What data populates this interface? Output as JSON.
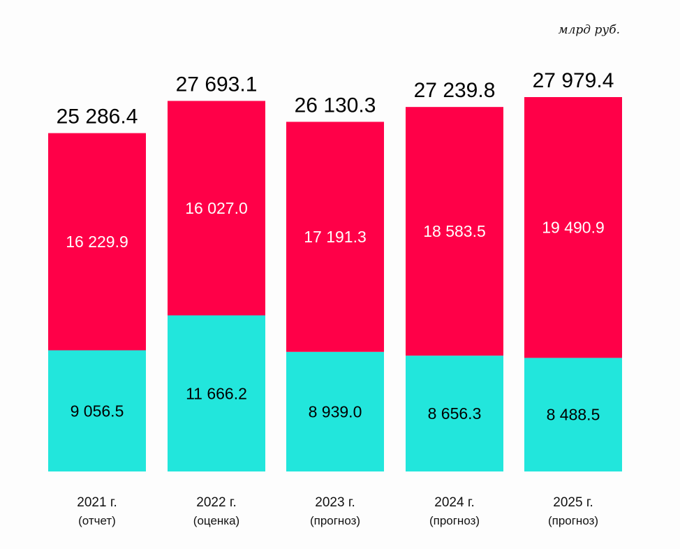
{
  "chart_data": {
    "type": "bar",
    "stacked": true,
    "unit_label": "млрд руб.",
    "categories": [
      "2021 г.",
      "2022 г.",
      "2023 г.",
      "2024 г.",
      "2025 г."
    ],
    "category_notes": [
      "(отчет)",
      "(оценка)",
      "(прогноз)",
      "(прогноз)",
      "(прогноз)"
    ],
    "totals": [
      "25 286.4",
      "27 693.1",
      "26 130.3",
      "27 239.8",
      "27 979.4"
    ],
    "series": [
      {
        "values": [
          9056.5,
          11666.2,
          8939.0,
          8656.3,
          8488.5
        ],
        "labels": [
          "9 056.5",
          "11 666.2",
          "8 939.0",
          "8 656.3",
          "8 488.5"
        ],
        "color": "#22E6DC"
      },
      {
        "values": [
          16229.9,
          16027.0,
          17191.3,
          18583.5,
          19490.9
        ],
        "labels": [
          "16 229.9",
          "16 027.0",
          "17 191.3",
          "18 583.5",
          "19 490.9"
        ],
        "color": "#FF0048"
      }
    ],
    "ylim": [
      0,
      27979.4
    ],
    "grid": false,
    "legend": "none"
  }
}
